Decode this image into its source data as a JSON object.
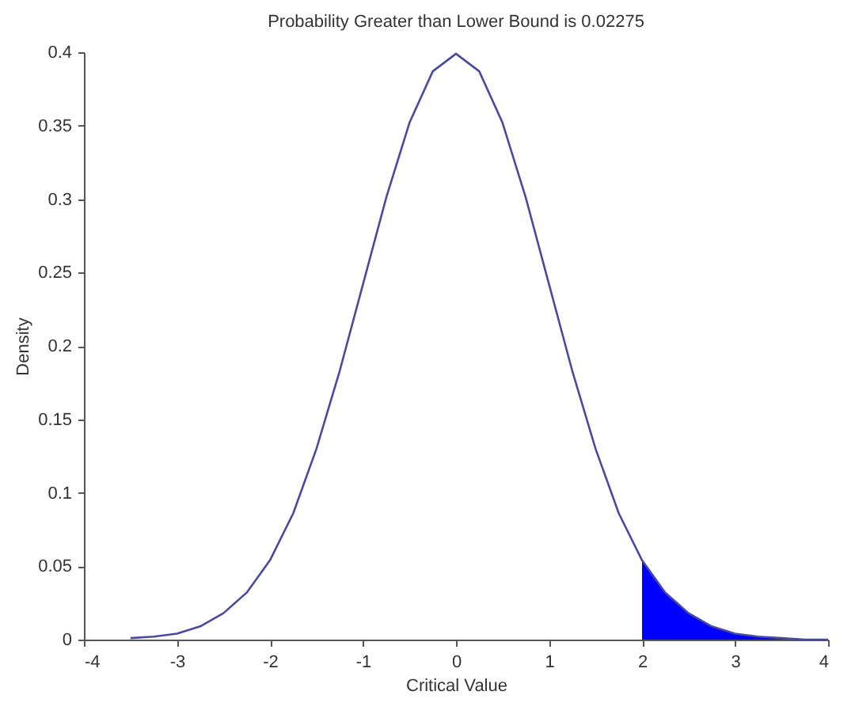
{
  "chart_data": {
    "type": "line",
    "title": "Probability Greater than Lower Bound is 0.02275",
    "xlabel": "Critical Value",
    "ylabel": "Density",
    "xlim": [
      -4,
      4
    ],
    "xticks": [
      -4,
      -3,
      -2,
      -1,
      0,
      1,
      2,
      3,
      4
    ],
    "ylim": [
      0,
      0.4
    ],
    "yticks": [
      0,
      0.05,
      0.1,
      0.15,
      0.2,
      0.25,
      0.3,
      0.35,
      0.4
    ],
    "grid": false,
    "series": [
      {
        "type": "area",
        "color": "#0000ff",
        "x": [
          2,
          2.25,
          2.5,
          2.75,
          3,
          3.25,
          3.5,
          3.75,
          4
        ],
        "values": [
          0.054,
          0.032,
          0.018,
          0.009,
          0.004,
          0.002,
          0.001,
          0.0,
          0.0
        ]
      },
      {
        "color": "#4a4aa0",
        "x": [
          -3.5,
          -3.25,
          -3,
          -2.75,
          -2.5,
          -2.25,
          -2,
          -1.75,
          -1.5,
          -1.25,
          -1,
          -0.75,
          -0.5,
          -0.25,
          0,
          0.25,
          0.5,
          0.75,
          1,
          1.25,
          1.5,
          1.75,
          2,
          2.25,
          2.5,
          2.75,
          3,
          3.25,
          3.5,
          3.75,
          4
        ],
        "values": [
          0.001,
          0.002,
          0.004,
          0.009,
          0.018,
          0.032,
          0.054,
          0.086,
          0.13,
          0.183,
          0.242,
          0.301,
          0.352,
          0.387,
          0.399,
          0.387,
          0.352,
          0.301,
          0.242,
          0.183,
          0.13,
          0.086,
          0.054,
          0.032,
          0.018,
          0.009,
          0.004,
          0.002,
          0.001,
          0.0,
          0.0
        ]
      }
    ]
  }
}
